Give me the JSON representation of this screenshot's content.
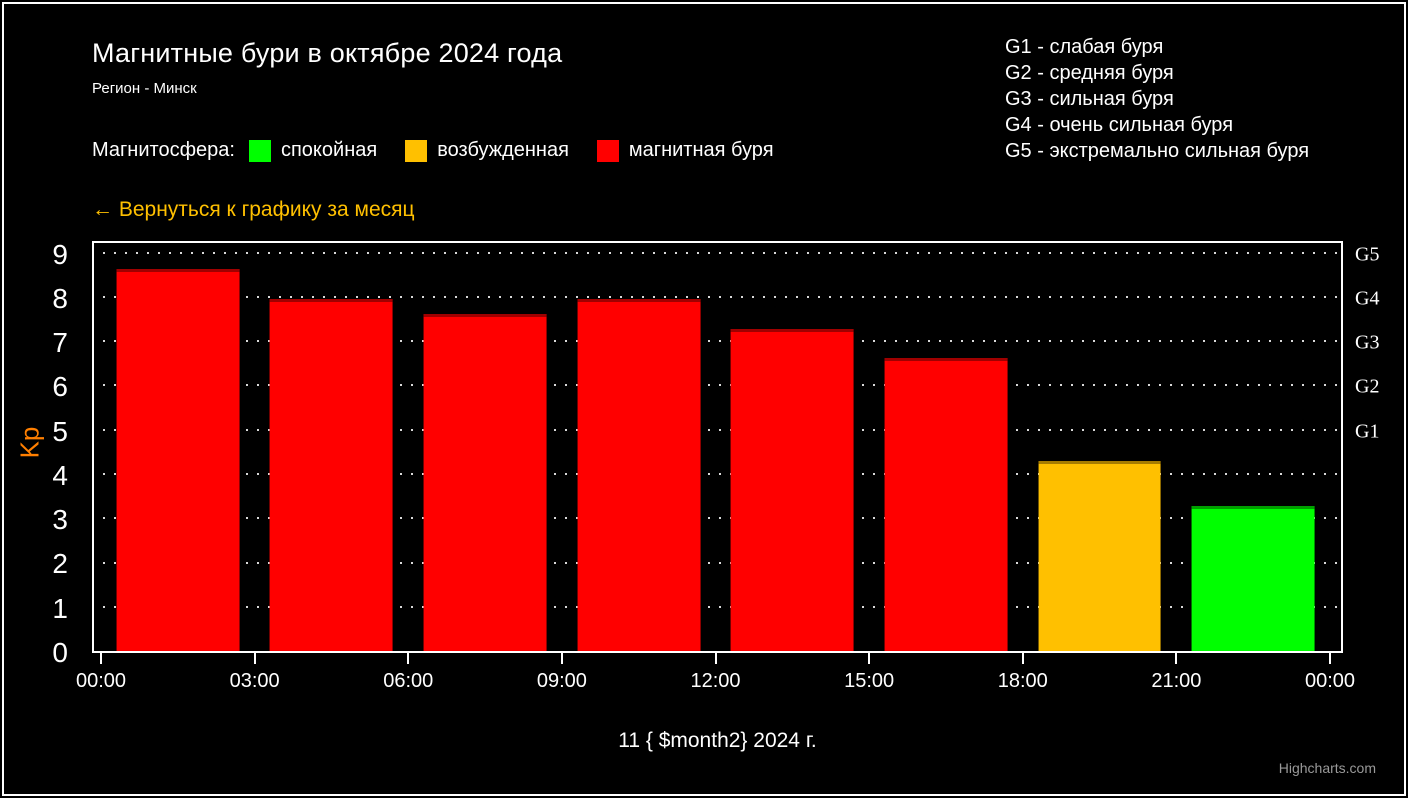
{
  "colors": {
    "background": "#000000",
    "frame": "#ffffff",
    "text": "#ffffff",
    "link": "#ffc000",
    "kp_title": "#ff7f00",
    "credit": "#999999",
    "quiet_green": "#00ff00",
    "excited_orange": "#ffc000",
    "storm_red": "#ff0000"
  },
  "header": {
    "title": "Магнитные бури в октябре 2024 года",
    "subtitle": "Регион - Минск"
  },
  "storm_scale": [
    "G1 - слабая буря",
    "G2 - средняя буря",
    "G3 - сильная буря",
    "G4 - очень сильная буря",
    "G5 - экстремально сильная буря"
  ],
  "legend": {
    "label": "Магнитосфера:",
    "items": [
      {
        "label": "спокойная",
        "color": "#00ff00"
      },
      {
        "label": "возбужденная",
        "color": "#ffc000"
      },
      {
        "label": "магнитная буря",
        "color": "#ff0000"
      }
    ]
  },
  "back_link": "← Вернуться к графику за месяц",
  "chart_data": {
    "type": "bar",
    "title": "Магнитные бури в октябре 2024 года",
    "subtitle": "Регион - Минск",
    "xlabel": "11 { $month2} 2024 г.",
    "ylabel": "Kp",
    "x_tick_labels": [
      "00:00",
      "03:00",
      "06:00",
      "09:00",
      "12:00",
      "15:00",
      "18:00",
      "21:00",
      "00:00"
    ],
    "y_ticks": [
      0,
      1,
      2,
      3,
      4,
      5,
      6,
      7,
      8,
      9
    ],
    "ylim": [
      0,
      9.31
    ],
    "grid": "horizontal-dotted",
    "legend_position": "top-left",
    "series": [
      {
        "name": "Kp",
        "points": [
          {
            "interval": "00:00-03:00",
            "value": 8.67,
            "state": "магнитная буря",
            "color": "#ff0000",
            "edge": "#a00000"
          },
          {
            "interval": "03:00-06:00",
            "value": 8.0,
            "state": "магнитная буря",
            "color": "#ff0000",
            "edge": "#a00000"
          },
          {
            "interval": "06:00-09:00",
            "value": 7.67,
            "state": "магнитная буря",
            "color": "#ff0000",
            "edge": "#a00000"
          },
          {
            "interval": "09:00-12:00",
            "value": 8.0,
            "state": "магнитная буря",
            "color": "#ff0000",
            "edge": "#a00000"
          },
          {
            "interval": "12:00-15:00",
            "value": 7.33,
            "state": "магнитная буря",
            "color": "#ff0000",
            "edge": "#a00000"
          },
          {
            "interval": "15:00-18:00",
            "value": 6.67,
            "state": "магнитная буря",
            "color": "#ff0000",
            "edge": "#a00000"
          },
          {
            "interval": "18:00-21:00",
            "value": 4.33,
            "state": "возбужденная",
            "color": "#ffc000",
            "edge": "#a67c00"
          },
          {
            "interval": "21:00-00:00",
            "value": 3.33,
            "state": "спокойная",
            "color": "#00ff00",
            "edge": "#00a000"
          }
        ]
      }
    ],
    "right_axis_labels": [
      {
        "label": "G1",
        "value": 5
      },
      {
        "label": "G2",
        "value": 6
      },
      {
        "label": "G3",
        "value": 7
      },
      {
        "label": "G4",
        "value": 8
      },
      {
        "label": "G5",
        "value": 9
      }
    ]
  },
  "credits": "Highcharts.com"
}
